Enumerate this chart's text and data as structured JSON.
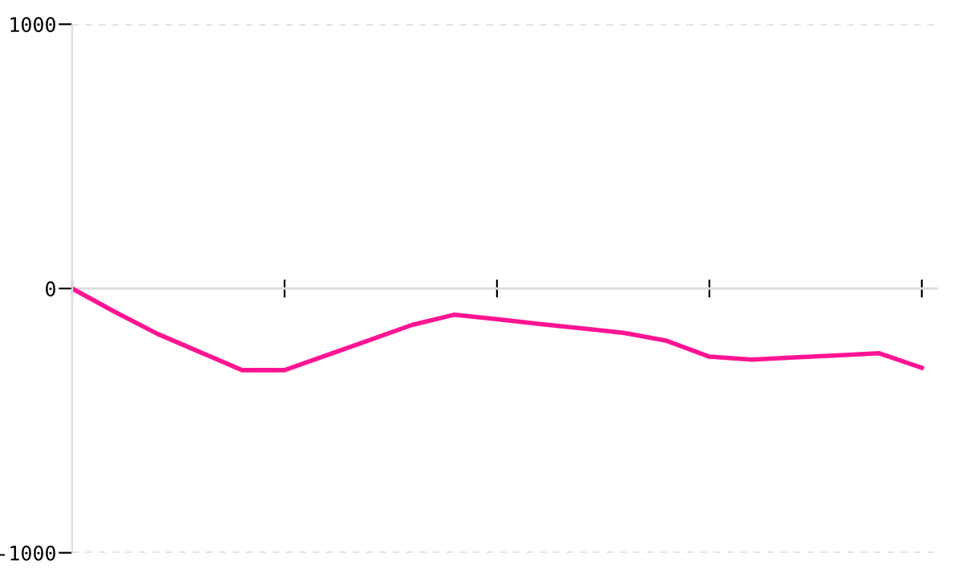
{
  "chart_data": {
    "type": "line",
    "categories": [
      null,
      null,
      null,
      null,
      null,
      null,
      null,
      null,
      null,
      null,
      null,
      null,
      null,
      null,
      null,
      null,
      null,
      null,
      null,
      null,
      null
    ],
    "series": [
      {
        "color": "#ff1493",
        "values": [
          0,
          -88,
          -171,
          -240,
          -309,
          -309,
          -252,
          -195,
          -138,
          -99,
          -116,
          -134,
          -151,
          -168,
          -198,
          -258,
          -269,
          -261,
          -253,
          -245,
          -300
        ]
      }
    ],
    "ylim": [
      -1000,
      1000
    ],
    "yticks": [
      -1000,
      0,
      1000
    ],
    "grid": "y",
    "tick_labels": "y",
    "marker": "none",
    "line_style": "solid"
  }
}
